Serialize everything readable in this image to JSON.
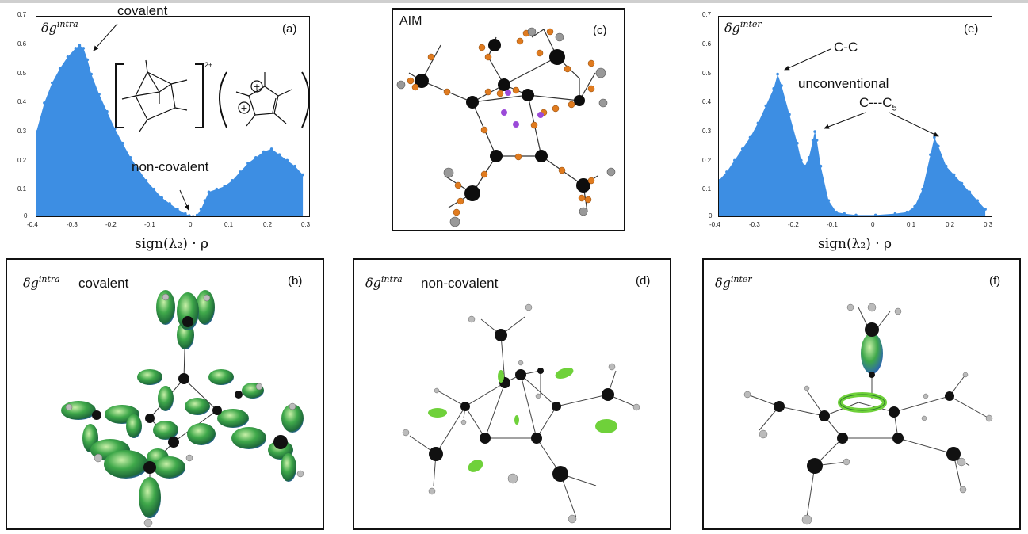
{
  "panels": {
    "a": {
      "tag": "(a)",
      "symbol": "δg",
      "symbol_sup": "intra",
      "label_covalent": "covalent",
      "label_noncovalent": "non-covalent",
      "charge": "2+",
      "xlabel": "sign(λ₂) · ρ"
    },
    "c": {
      "tag": "(c)",
      "title": "AIM"
    },
    "e": {
      "tag": "(e)",
      "symbol": "δg",
      "symbol_sup": "inter",
      "label_cc": "C-C",
      "label_unconv": "unconventional",
      "label_cc5": "C---C",
      "label_cc5_sub": "5",
      "xlabel": "sign(λ₂) · ρ"
    },
    "b": {
      "tag": "(b)",
      "symbol": "δg",
      "symbol_sup": "intra",
      "label": "covalent"
    },
    "d": {
      "tag": "(d)",
      "symbol": "δg",
      "symbol_sup": "intra",
      "label": "non-covalent"
    },
    "f": {
      "tag": "(f)",
      "symbol": "δg",
      "symbol_sup": "inter"
    }
  },
  "chart_data": [
    {
      "type": "scatter",
      "title": "",
      "xlabel": "sign(λ2) · ρ",
      "ylabel": "",
      "xlim": [
        -0.4,
        0.3
      ],
      "ylim": [
        0,
        0.7
      ],
      "xticks": [
        "-0.4",
        "-0.3",
        "-0.2",
        "-0.1",
        "0",
        "0.1",
        "0.2",
        "0.3"
      ],
      "yticks": [
        "0",
        "0.1",
        "0.2",
        "0.3",
        "0.4",
        "0.5",
        "0.6",
        "0.7"
      ],
      "color": "#3d8ee3",
      "envelope": {
        "x": [
          -0.4,
          -0.38,
          -0.36,
          -0.34,
          -0.32,
          -0.3,
          -0.29,
          -0.28,
          -0.27,
          -0.26,
          -0.24,
          -0.22,
          -0.2,
          -0.18,
          -0.16,
          -0.14,
          -0.12,
          -0.1,
          -0.08,
          -0.06,
          -0.04,
          -0.02,
          -0.01,
          0,
          0.01,
          0.02,
          0.03,
          0.04,
          0.06,
          0.08,
          0.1,
          0.12,
          0.14,
          0.16,
          0.18,
          0.2,
          0.22,
          0.24,
          0.26,
          0.28
        ],
        "y": [
          0.3,
          0.4,
          0.47,
          0.52,
          0.56,
          0.59,
          0.6,
          0.59,
          0.55,
          0.5,
          0.43,
          0.37,
          0.31,
          0.26,
          0.21,
          0.17,
          0.13,
          0.1,
          0.07,
          0.05,
          0.03,
          0.015,
          0.008,
          0.005,
          0.01,
          0.03,
          0.06,
          0.09,
          0.1,
          0.11,
          0.13,
          0.16,
          0.19,
          0.21,
          0.23,
          0.24,
          0.22,
          0.2,
          0.18,
          0.15
        ]
      }
    },
    {
      "type": "scatter",
      "title": "",
      "xlabel": "sign(λ2) · ρ",
      "ylabel": "",
      "xlim": [
        -0.4,
        0.3
      ],
      "ylim": [
        0,
        0.7
      ],
      "xticks": [
        "-0.4",
        "-0.3",
        "-0.2",
        "-0.1",
        "0",
        "0.1",
        "0.2",
        "0.3"
      ],
      "yticks": [
        "0",
        "0.1",
        "0.2",
        "0.3",
        "0.4",
        "0.5",
        "0.6",
        "0.7"
      ],
      "color": "#3d8ee3",
      "envelope": {
        "x": [
          -0.4,
          -0.38,
          -0.36,
          -0.34,
          -0.32,
          -0.3,
          -0.28,
          -0.26,
          -0.25,
          -0.24,
          -0.22,
          -0.2,
          -0.19,
          -0.18,
          -0.17,
          -0.16,
          -0.155,
          -0.15,
          -0.14,
          -0.12,
          -0.1,
          -0.08,
          -0.05,
          0,
          0.05,
          0.08,
          0.1,
          0.12,
          0.14,
          0.15,
          0.16,
          0.18,
          0.2,
          0.22,
          0.24,
          0.26,
          0.28
        ],
        "y": [
          0.13,
          0.16,
          0.2,
          0.24,
          0.28,
          0.33,
          0.39,
          0.45,
          0.5,
          0.46,
          0.36,
          0.26,
          0.2,
          0.18,
          0.21,
          0.27,
          0.3,
          0.27,
          0.18,
          0.06,
          0.02,
          0.015,
          0.01,
          0.01,
          0.015,
          0.02,
          0.04,
          0.1,
          0.22,
          0.28,
          0.25,
          0.18,
          0.15,
          0.12,
          0.09,
          0.06,
          0.03
        ]
      }
    }
  ]
}
